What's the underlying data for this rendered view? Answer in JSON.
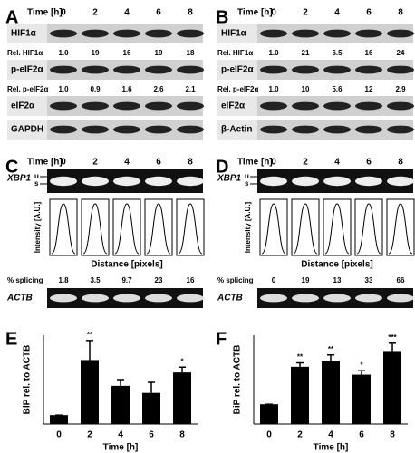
{
  "panels": [
    {
      "letter": "A",
      "time_label": "Time [h]",
      "times": [
        "0",
        "2",
        "4",
        "6",
        "8"
      ],
      "rows": [
        {
          "label": "HIF1α"
        },
        {
          "label": "Rel. HIF1α",
          "values": [
            "1.0",
            "19",
            "16",
            "19",
            "18"
          ]
        },
        {
          "label": "p-eIF2α"
        },
        {
          "label": "Rel. p-eIF2α",
          "values": [
            "1.0",
            "0.9",
            "1.6",
            "2.6",
            "2.1"
          ]
        },
        {
          "label": "eIF2α"
        },
        {
          "label": "GAPDH"
        }
      ]
    },
    {
      "letter": "B",
      "time_label": "Time [h]",
      "times": [
        "0",
        "2",
        "4",
        "6",
        "8"
      ],
      "rows": [
        {
          "label": "HIF1α"
        },
        {
          "label": "Rel. HIF1α",
          "values": [
            "1.0",
            "21",
            "6.5",
            "16",
            "24"
          ]
        },
        {
          "label": "p-eIF2α"
        },
        {
          "label": "Rel. p-eIF2α",
          "values": [
            "1.0",
            "10",
            "5.6",
            "12",
            "2.9"
          ]
        },
        {
          "label": "eIF2α"
        },
        {
          "label": "β-Actin"
        }
      ]
    },
    {
      "letter": "C",
      "time_label": "Time [h]",
      "times": [
        "0",
        "2",
        "4",
        "6",
        "8"
      ],
      "gel_label": "XBP1",
      "bands": [
        "u",
        "s"
      ],
      "y_label": "Intensity [A.U.]",
      "x_label": "Distance [pixels]",
      "splicing_label": "% splicing",
      "splicing": [
        "1.8",
        "3.5",
        "9.7",
        "23",
        "16"
      ],
      "control_label": "ACTB"
    },
    {
      "letter": "D",
      "time_label": "Time [h]",
      "times": [
        "0",
        "2",
        "4",
        "6",
        "8"
      ],
      "gel_label": "XBP1",
      "bands": [
        "u",
        "s"
      ],
      "y_label": "Intensity [A.U.]",
      "x_label": "Distance [pixels]",
      "splicing_label": "% splicing",
      "splicing": [
        "0",
        "19",
        "13",
        "33",
        "66"
      ],
      "control_label": "ACTB"
    },
    {
      "letter": "E",
      "chart": {
        "type": "bar",
        "y_label": "BiP rel. to ACTB",
        "x_label": "Time [h]",
        "categories": [
          "0",
          "2",
          "4",
          "6",
          "8"
        ],
        "values": [
          1,
          7.2,
          4.3,
          3.5,
          5.8
        ],
        "errors": [
          0,
          2.2,
          0.7,
          1.2,
          0.6
        ],
        "significance": [
          null,
          "**",
          null,
          null,
          "*"
        ],
        "ylim": [
          0,
          10
        ],
        "color": "#000000"
      }
    },
    {
      "letter": "F",
      "chart": {
        "type": "bar",
        "y_label": "BiP rel. to ACTB",
        "x_label": "Time [h]",
        "categories": [
          "0",
          "2",
          "4",
          "6",
          "8"
        ],
        "values": [
          1,
          2.9,
          3.2,
          2.5,
          3.7
        ],
        "errors": [
          0,
          0.2,
          0.3,
          0.2,
          0.4
        ],
        "significance": [
          null,
          "**",
          "**",
          "*",
          "***"
        ],
        "ylim": [
          0,
          4.5
        ],
        "color": "#000000"
      }
    }
  ]
}
